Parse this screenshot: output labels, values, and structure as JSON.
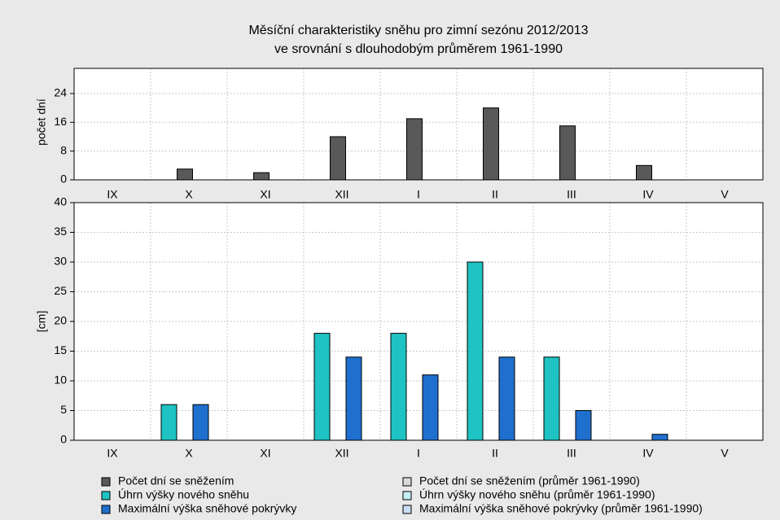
{
  "chart_data": [
    {
      "type": "bar",
      "title": "Měsíční charakteristiky sněhu pro zimní sezónu 2012/2013",
      "subtitle": "ve srovnání s dlouhodobým průměrem 1961-1990",
      "ylabel": "počet dní",
      "categories": [
        "IX",
        "X",
        "XI",
        "XII",
        "I",
        "II",
        "III",
        "IV",
        "V"
      ],
      "series": [
        {
          "name": "Počet dní se sněžením",
          "color": "#595959",
          "values": [
            0,
            3,
            2,
            12,
            17,
            20,
            15,
            4,
            0
          ]
        },
        {
          "name": "Počet dní se sněžením (průměr 1961-1990)",
          "color": "#d9d9d9",
          "values": [
            null,
            null,
            null,
            null,
            null,
            null,
            null,
            null,
            null
          ]
        }
      ],
      "ylim": [
        0,
        31
      ],
      "yticks": [
        0,
        8,
        16,
        24
      ],
      "grid": true
    },
    {
      "type": "bar",
      "ylabel": "[cm]",
      "categories": [
        "IX",
        "X",
        "XI",
        "XII",
        "I",
        "II",
        "III",
        "IV",
        "V"
      ],
      "series": [
        {
          "name": "Úhrn výšky nového sněhu",
          "color": "#1fc3c3",
          "values": [
            0,
            6,
            0,
            18,
            18,
            30,
            14,
            0,
            0
          ]
        },
        {
          "name": "Maximální výška sněhové pokrývky",
          "color": "#1f6fce",
          "values": [
            0,
            6,
            0,
            14,
            11,
            14,
            5,
            1,
            0
          ]
        },
        {
          "name": "Úhrn výšky nového sněhu  (průměr 1961-1990)",
          "color": "#c6eef4",
          "values": [
            null,
            null,
            null,
            null,
            null,
            null,
            null,
            null,
            null
          ]
        },
        {
          "name": "Maximální výška sněhové pokrývky (průměr 1961-1990)",
          "color": "#c8dcf3",
          "values": [
            null,
            null,
            null,
            null,
            null,
            null,
            null,
            null,
            null
          ]
        }
      ],
      "ylim": [
        0,
        40
      ],
      "yticks": [
        0,
        5,
        10,
        15,
        20,
        25,
        30,
        35,
        40
      ],
      "grid": true
    }
  ]
}
